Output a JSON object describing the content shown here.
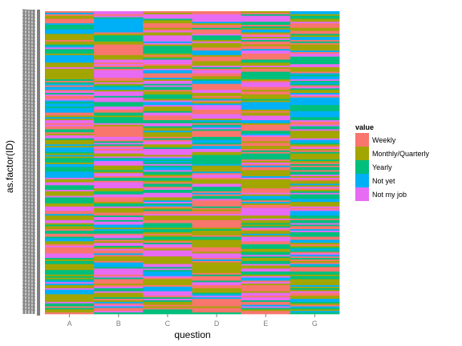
{
  "chart_data": {
    "type": "heatmap",
    "xlabel": "question",
    "ylabel": "as.factor(ID)",
    "categories": [
      "A",
      "B",
      "C",
      "D",
      "E",
      "G"
    ],
    "row_count": 200,
    "legend": {
      "title": "value",
      "placement": "right",
      "levels": [
        "Weekly",
        "Monthly/Quarterly",
        "Yearly",
        "Not yet",
        "Not my job"
      ]
    },
    "colors": {
      "Weekly": "#F8766D",
      "Monthly/Quarterly": "#A3A500",
      "Yearly": "#00BF7D",
      "Not yet": "#00B0F6",
      "Not my job": "#E76BF3"
    },
    "grid": false,
    "cells": "one value per respondent (row) per question (column); the individual ID tick labels are overplotted and unreadable"
  }
}
